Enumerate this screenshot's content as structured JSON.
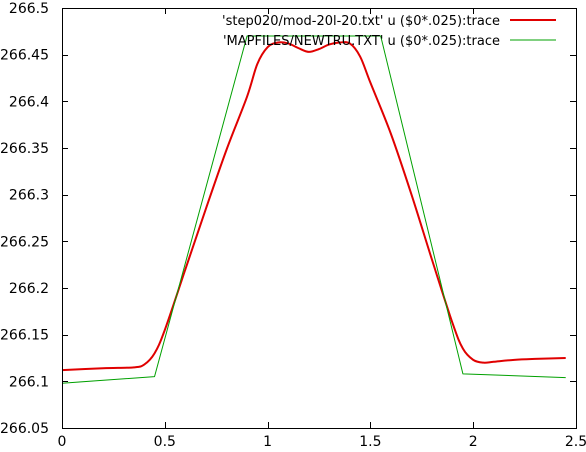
{
  "chart_data": {
    "type": "line",
    "xlim": [
      0,
      2.5
    ],
    "ylim": [
      266.05,
      266.5
    ],
    "x_ticks": [
      0,
      0.5,
      1,
      1.5,
      2,
      2.5
    ],
    "x_tick_labels": [
      "0",
      "0.5",
      "1",
      "1.5",
      "2",
      "2.5"
    ],
    "y_ticks": [
      266.05,
      266.1,
      266.15,
      266.2,
      266.25,
      266.3,
      266.35,
      266.4,
      266.45,
      266.5
    ],
    "y_tick_labels": [
      "266.05",
      "266.1",
      "266.15",
      "266.2",
      "266.25",
      "266.3",
      "266.35",
      "266.4",
      "266.45",
      "266.5"
    ],
    "grid": false,
    "legend_position": "top-right",
    "series": [
      {
        "name": "'step020/mod-20l-20.txt' u ($0*.025):trace",
        "color": "#e00000",
        "style": "thick",
        "points": [
          [
            0,
            266.112
          ],
          [
            0.2,
            266.114
          ],
          [
            0.35,
            266.115
          ],
          [
            0.4,
            266.118
          ],
          [
            0.45,
            266.13
          ],
          [
            0.5,
            266.155
          ],
          [
            0.6,
            266.22
          ],
          [
            0.7,
            266.285
          ],
          [
            0.8,
            266.348
          ],
          [
            0.9,
            266.405
          ],
          [
            0.95,
            266.44
          ],
          [
            1.0,
            266.458
          ],
          [
            1.05,
            266.463
          ],
          [
            1.1,
            266.462
          ],
          [
            1.15,
            266.457
          ],
          [
            1.2,
            266.453
          ],
          [
            1.25,
            266.456
          ],
          [
            1.3,
            266.461
          ],
          [
            1.35,
            266.463
          ],
          [
            1.4,
            266.462
          ],
          [
            1.45,
            266.448
          ],
          [
            1.5,
            266.42
          ],
          [
            1.6,
            266.365
          ],
          [
            1.7,
            266.3
          ],
          [
            1.8,
            266.23
          ],
          [
            1.9,
            266.162
          ],
          [
            1.95,
            266.135
          ],
          [
            2.0,
            266.123
          ],
          [
            2.05,
            266.12
          ],
          [
            2.1,
            266.121
          ],
          [
            2.2,
            266.123
          ],
          [
            2.3,
            266.124
          ],
          [
            2.45,
            266.125
          ]
        ]
      },
      {
        "name": "'MAPFILES/NEWTRU.TXT' u ($0*.025):trace",
        "color": "#00a000",
        "style": "thin",
        "points": [
          [
            0,
            266.098
          ],
          [
            0.45,
            266.105
          ],
          [
            0.9,
            266.47
          ],
          [
            1.55,
            266.47
          ],
          [
            1.95,
            266.108
          ],
          [
            2.45,
            266.104
          ]
        ]
      }
    ]
  }
}
